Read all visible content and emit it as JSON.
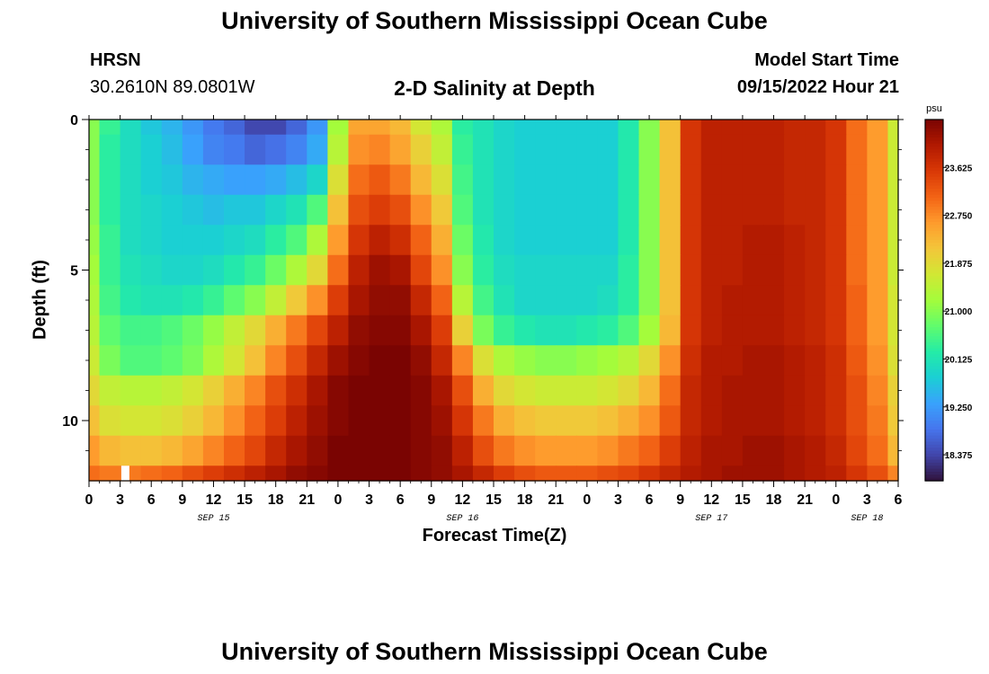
{
  "header": {
    "title": "University of Southern Mississippi Ocean Cube",
    "station_name": "HRSN",
    "station_coords": "30.2610N  89.0801W",
    "chart_title": "2-D Salinity at Depth",
    "model_label": "Model Start Time",
    "model_time": "09/15/2022 Hour 21"
  },
  "footer": {
    "title": "University of Southern Mississippi Ocean Cube"
  },
  "chart_data": {
    "type": "heatmap",
    "title": "2-D Salinity at Depth",
    "xlabel": "Forecast Time(Z)",
    "ylabel": "Depth (ft)",
    "xlim": [
      0,
      78
    ],
    "ylim": [
      0,
      12
    ],
    "x_tick_labels": [
      "0",
      "3",
      "6",
      "9",
      "12",
      "15",
      "18",
      "21",
      "0",
      "3",
      "6",
      "9",
      "12",
      "15",
      "18",
      "21",
      "0",
      "3",
      "6",
      "9",
      "12",
      "15",
      "18",
      "21",
      "0",
      "3",
      "6"
    ],
    "y_ticks": [
      0,
      5,
      10
    ],
    "y_tick_labels": [
      "0",
      "5",
      "10"
    ],
    "day_labels": [
      {
        "text": "SEP 15",
        "hour": 12
      },
      {
        "text": "SEP 16",
        "hour": 36
      },
      {
        "text": "SEP 17",
        "hour": 60
      },
      {
        "text": "SEP 18",
        "hour": 75
      }
    ],
    "colorbar": {
      "unit": "psu",
      "min": 17.9,
      "max": 24.5,
      "tick_values": [
        18.375,
        19.25,
        20.125,
        21.0,
        21.875,
        22.75,
        23.625
      ],
      "tick_labels": [
        "18.375",
        "19.250",
        "20.125",
        "21.000",
        "21.875",
        "22.750",
        "23.625"
      ],
      "colormap": [
        "#30123b",
        "#4145ab",
        "#4675ed",
        "#39a2fc",
        "#1bcfd4",
        "#24eca6",
        "#61fc6c",
        "#a4fc3b",
        "#d1e834",
        "#f3c63a",
        "#fe9b2d",
        "#f36315",
        "#d93806",
        "#b11901",
        "#7a0402"
      ]
    },
    "marker": {
      "hour": 3.5,
      "depth_from": 11.5,
      "depth_to": 12,
      "color": "#ffffff"
    },
    "depth_levels": [
      0,
      1,
      2,
      3,
      4,
      5,
      6,
      7,
      8,
      9,
      10,
      11,
      12
    ],
    "time_hours": [
      0,
      2,
      4,
      6,
      8,
      10,
      12,
      14,
      16,
      18,
      20,
      22,
      24,
      26,
      28,
      30,
      32,
      34,
      36,
      38,
      40,
      42,
      44,
      46,
      48,
      50,
      52,
      54,
      56,
      58,
      60,
      62,
      64,
      66,
      68,
      70,
      72,
      74,
      76,
      78
    ],
    "values_by_depth_psu": [
      [
        21.0,
        20.4,
        20.0,
        19.7,
        19.5,
        19.2,
        18.9,
        18.7,
        18.4,
        18.4,
        18.7,
        19.2,
        21.2,
        22.5,
        22.5,
        22.3,
        21.7,
        21.3,
        20.3,
        20.1,
        19.9,
        19.8,
        19.8,
        19.8,
        19.8,
        19.8,
        20.2,
        21.0,
        22.2,
        23.6,
        23.9,
        23.9,
        23.9,
        23.9,
        23.8,
        23.8,
        23.6,
        23.0,
        22.6,
        21.6
      ],
      [
        21.0,
        20.3,
        20.0,
        19.8,
        19.6,
        19.3,
        19.0,
        18.9,
        18.7,
        18.8,
        19.0,
        19.4,
        21.4,
        22.7,
        22.8,
        22.5,
        22.0,
        21.5,
        20.4,
        20.1,
        19.9,
        19.8,
        19.8,
        19.8,
        19.8,
        19.8,
        20.2,
        21.0,
        22.2,
        23.6,
        23.9,
        23.9,
        23.9,
        23.9,
        23.8,
        23.8,
        23.6,
        23.0,
        22.6,
        21.6
      ],
      [
        21.0,
        20.3,
        20.0,
        19.8,
        19.7,
        19.5,
        19.4,
        19.3,
        19.3,
        19.4,
        19.6,
        19.9,
        21.8,
        23.0,
        23.2,
        22.9,
        22.3,
        21.8,
        20.5,
        20.1,
        19.9,
        19.8,
        19.8,
        19.8,
        19.8,
        19.8,
        20.2,
        21.0,
        22.2,
        23.6,
        23.9,
        23.9,
        23.9,
        23.9,
        23.8,
        23.8,
        23.6,
        23.0,
        22.6,
        21.6
      ],
      [
        21.0,
        20.3,
        20.0,
        19.9,
        19.8,
        19.7,
        19.6,
        19.7,
        19.7,
        19.9,
        20.1,
        20.6,
        22.2,
        23.3,
        23.5,
        23.3,
        22.7,
        22.1,
        20.6,
        20.1,
        19.9,
        19.8,
        19.8,
        19.8,
        19.8,
        19.8,
        20.2,
        21.0,
        22.2,
        23.6,
        23.9,
        23.9,
        23.9,
        23.9,
        23.8,
        23.8,
        23.6,
        23.0,
        22.6,
        21.6
      ],
      [
        21.1,
        20.4,
        20.0,
        19.9,
        19.8,
        19.8,
        19.8,
        19.9,
        20.0,
        20.3,
        20.6,
        21.3,
        22.6,
        23.6,
        23.9,
        23.7,
        23.1,
        22.4,
        20.8,
        20.2,
        19.9,
        19.8,
        19.8,
        19.8,
        19.8,
        19.8,
        20.2,
        21.0,
        22.2,
        23.6,
        23.9,
        23.9,
        24.0,
        24.0,
        23.9,
        23.8,
        23.6,
        23.0,
        22.6,
        21.6
      ],
      [
        21.2,
        20.4,
        20.1,
        20.0,
        19.9,
        19.9,
        20.0,
        20.2,
        20.4,
        20.8,
        21.3,
        21.9,
        23.0,
        23.9,
        24.2,
        24.1,
        23.4,
        22.7,
        21.0,
        20.3,
        20.0,
        19.9,
        19.9,
        19.9,
        19.9,
        19.9,
        20.3,
        21.0,
        22.2,
        23.6,
        23.9,
        23.9,
        24.0,
        24.0,
        23.9,
        23.8,
        23.6,
        23.0,
        22.6,
        21.6
      ],
      [
        21.3,
        20.5,
        20.2,
        20.1,
        20.1,
        20.2,
        20.4,
        20.7,
        21.0,
        21.5,
        22.1,
        22.7,
        23.5,
        24.1,
        24.3,
        24.3,
        23.8,
        23.1,
        21.4,
        20.5,
        20.1,
        19.9,
        19.9,
        19.9,
        19.9,
        20.0,
        20.3,
        21.0,
        22.2,
        23.6,
        23.9,
        24.0,
        24.0,
        24.0,
        23.9,
        23.8,
        23.6,
        23.1,
        22.6,
        21.7
      ],
      [
        21.4,
        20.7,
        20.5,
        20.5,
        20.6,
        20.8,
        21.1,
        21.5,
        21.9,
        22.4,
        22.9,
        23.4,
        23.9,
        24.3,
        24.4,
        24.4,
        24.1,
        23.5,
        22.0,
        20.9,
        20.4,
        20.2,
        20.1,
        20.1,
        20.2,
        20.3,
        20.6,
        21.2,
        22.3,
        23.6,
        23.9,
        24.0,
        24.0,
        24.0,
        23.9,
        23.8,
        23.6,
        23.1,
        22.6,
        21.7
      ],
      [
        21.6,
        20.9,
        20.6,
        20.6,
        20.7,
        20.9,
        21.3,
        21.7,
        22.2,
        22.8,
        23.3,
        23.8,
        24.2,
        24.4,
        24.5,
        24.5,
        24.3,
        23.8,
        22.8,
        21.8,
        21.3,
        21.1,
        21.0,
        21.0,
        21.1,
        21.2,
        21.4,
        21.9,
        22.7,
        23.7,
        24.0,
        24.0,
        24.1,
        24.1,
        24.0,
        23.9,
        23.7,
        23.2,
        22.7,
        21.8
      ],
      [
        21.9,
        21.5,
        21.4,
        21.4,
        21.5,
        21.7,
        22.0,
        22.4,
        22.8,
        23.3,
        23.7,
        24.1,
        24.4,
        24.5,
        24.5,
        24.5,
        24.4,
        24.1,
        23.3,
        22.4,
        21.9,
        21.7,
        21.6,
        21.6,
        21.6,
        21.7,
        21.9,
        22.3,
        23.0,
        23.8,
        24.0,
        24.1,
        24.1,
        24.1,
        24.0,
        23.9,
        23.7,
        23.3,
        22.8,
        22.0
      ],
      [
        22.2,
        21.8,
        21.7,
        21.7,
        21.8,
        22.0,
        22.3,
        22.7,
        23.1,
        23.5,
        23.9,
        24.2,
        24.4,
        24.5,
        24.5,
        24.5,
        24.4,
        24.2,
        23.6,
        22.9,
        22.4,
        22.2,
        22.1,
        22.1,
        22.1,
        22.2,
        22.4,
        22.7,
        23.2,
        23.8,
        24.0,
        24.1,
        24.1,
        24.1,
        24.0,
        23.9,
        23.7,
        23.3,
        22.9,
        22.1
      ],
      [
        22.6,
        22.3,
        22.2,
        22.2,
        22.3,
        22.5,
        22.8,
        23.1,
        23.4,
        23.8,
        24.1,
        24.3,
        24.5,
        24.5,
        24.5,
        24.5,
        24.4,
        24.3,
        23.9,
        23.3,
        22.9,
        22.7,
        22.6,
        22.6,
        22.6,
        22.7,
        22.9,
        23.1,
        23.5,
        23.9,
        24.1,
        24.1,
        24.2,
        24.2,
        24.1,
        24.0,
        23.8,
        23.4,
        23.0,
        22.3
      ],
      [
        23.0,
        22.9,
        22.9,
        23.0,
        23.1,
        23.3,
        23.5,
        23.7,
        23.9,
        24.1,
        24.3,
        24.4,
        24.5,
        24.5,
        24.5,
        24.5,
        24.4,
        24.3,
        24.1,
        23.8,
        23.5,
        23.3,
        23.2,
        23.2,
        23.2,
        23.3,
        23.4,
        23.6,
        23.8,
        24.0,
        24.1,
        24.2,
        24.2,
        24.2,
        24.1,
        24.0,
        23.9,
        23.6,
        23.3,
        22.8
      ]
    ]
  }
}
